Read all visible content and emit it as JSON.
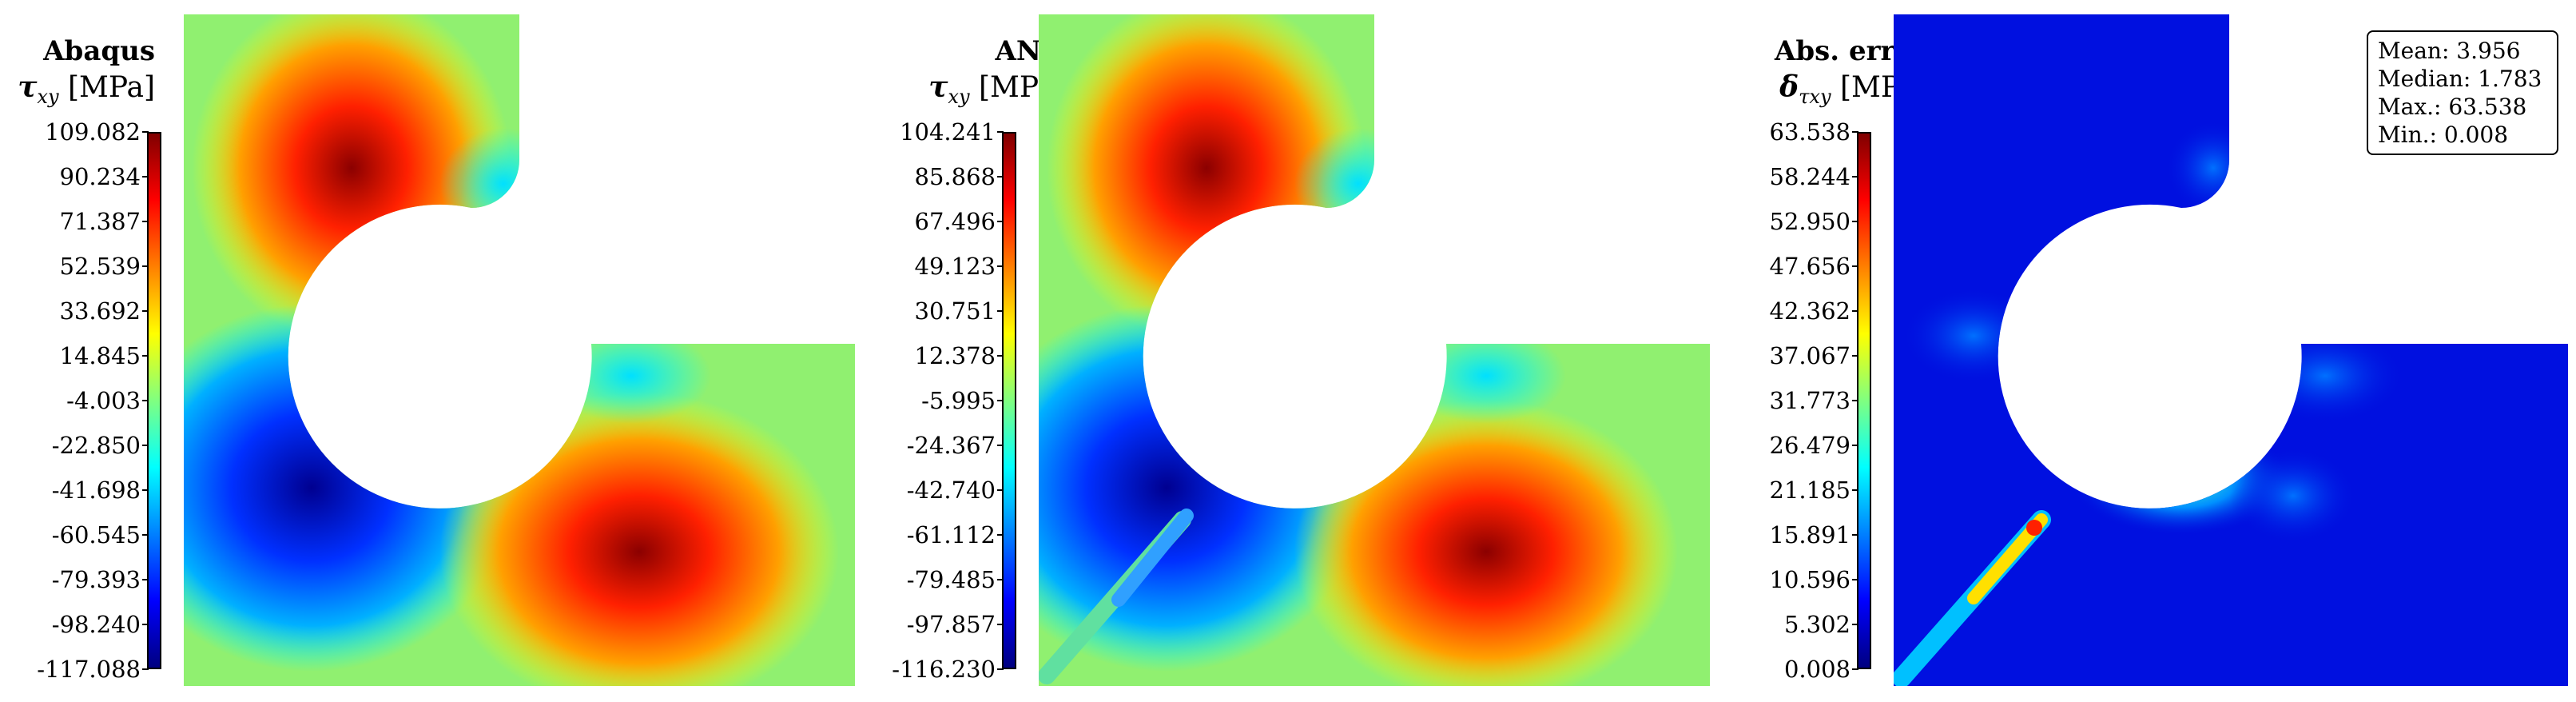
{
  "chart_data": [
    {
      "type": "heatmap",
      "title": "Abaqus",
      "quantity": {
        "symbol": "τ",
        "subscript": "xy",
        "unit": "[MPa]"
      },
      "colorbar": {
        "min": -117.088,
        "max": 109.082,
        "ticks": [
          "109.082",
          "90.234",
          "71.387",
          "52.539",
          "33.692",
          "14.845",
          "-4.003",
          "-22.850",
          "-41.698",
          "-60.545",
          "-79.393",
          "-98.240",
          "-117.088"
        ]
      },
      "colormap": "jet"
    },
    {
      "type": "heatmap",
      "title": "ANN",
      "quantity": {
        "symbol": "τ",
        "subscript": "xy",
        "unit": "[MPa]"
      },
      "colorbar": {
        "min": -116.23,
        "max": 104.241,
        "ticks": [
          "104.241",
          "85.868",
          "67.496",
          "49.123",
          "30.751",
          "12.378",
          "-5.995",
          "-24.367",
          "-42.740",
          "-61.112",
          "-79.485",
          "-97.857",
          "-116.230"
        ]
      },
      "colormap": "jet"
    },
    {
      "type": "heatmap",
      "title": "Abs. error",
      "quantity": {
        "symbol": "δ",
        "subscript": "τxy",
        "unit": "[MPa]"
      },
      "colorbar": {
        "min": 0.008,
        "max": 63.538,
        "ticks": [
          "63.538",
          "58.244",
          "52.950",
          "47.656",
          "42.362",
          "37.067",
          "31.773",
          "26.479",
          "21.185",
          "15.891",
          "10.596",
          "5.302",
          "0.008"
        ]
      },
      "colormap": "jet",
      "stats": [
        "Mean: 3.956",
        "Median: 1.783",
        "Max.: 63.538",
        "Min.: 0.008"
      ]
    }
  ]
}
